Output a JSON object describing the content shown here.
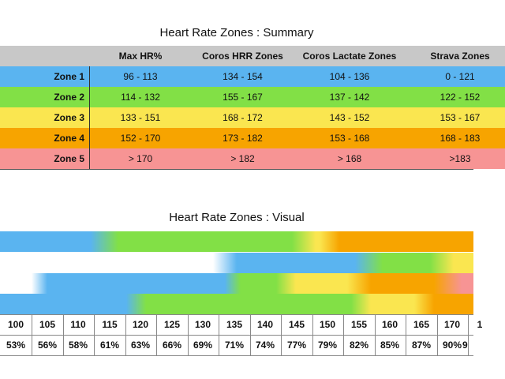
{
  "summary_title": "Heart Rate Zones : Summary",
  "visual_title": "Heart Rate Zones : Visual",
  "table": {
    "headers": [
      "",
      "Max HR%",
      "Coros HRR Zones",
      "Coros Lactate Zones",
      "Strava Zones"
    ],
    "rows": [
      {
        "zone": "Zone 1",
        "max_hr": "96 - 113",
        "coros_hrr": "134 - 154",
        "coros_lactate": "104 - 136",
        "strava": "0 - 121"
      },
      {
        "zone": "Zone 2",
        "max_hr": "114 - 132",
        "coros_hrr": "155 - 167",
        "coros_lactate": "137 - 142",
        "strava": "122 - 152"
      },
      {
        "zone": "Zone 3",
        "max_hr": "133 - 151",
        "coros_hrr": "168 - 172",
        "coros_lactate": "143 - 152",
        "strava": "153 - 167"
      },
      {
        "zone": "Zone 4",
        "max_hr": "152 - 170",
        "coros_hrr": "173 - 182",
        "coros_lactate": "153 - 168",
        "strava": "168 - 183"
      },
      {
        "zone": "Zone 5",
        "max_hr": "> 170",
        "coros_hrr": "> 182",
        "coros_lactate": "> 168",
        "strava": ">183"
      }
    ]
  },
  "colors": {
    "header": "#c8c8c8",
    "zone1": "#5ab4f0",
    "zone2": "#82e046",
    "zone3": "#fae650",
    "zone4": "#f7a400",
    "zone5": "#f79494"
  },
  "scale": {
    "bpm": [
      "100",
      "105",
      "110",
      "115",
      "120",
      "125",
      "130",
      "135",
      "140",
      "145",
      "150",
      "155",
      "160",
      "165",
      "170",
      "1"
    ],
    "pct": [
      "53%",
      "56%",
      "58%",
      "61%",
      "63%",
      "66%",
      "69%",
      "71%",
      "74%",
      "77%",
      "79%",
      "82%",
      "85%",
      "87%",
      "90%",
      "9"
    ]
  }
}
